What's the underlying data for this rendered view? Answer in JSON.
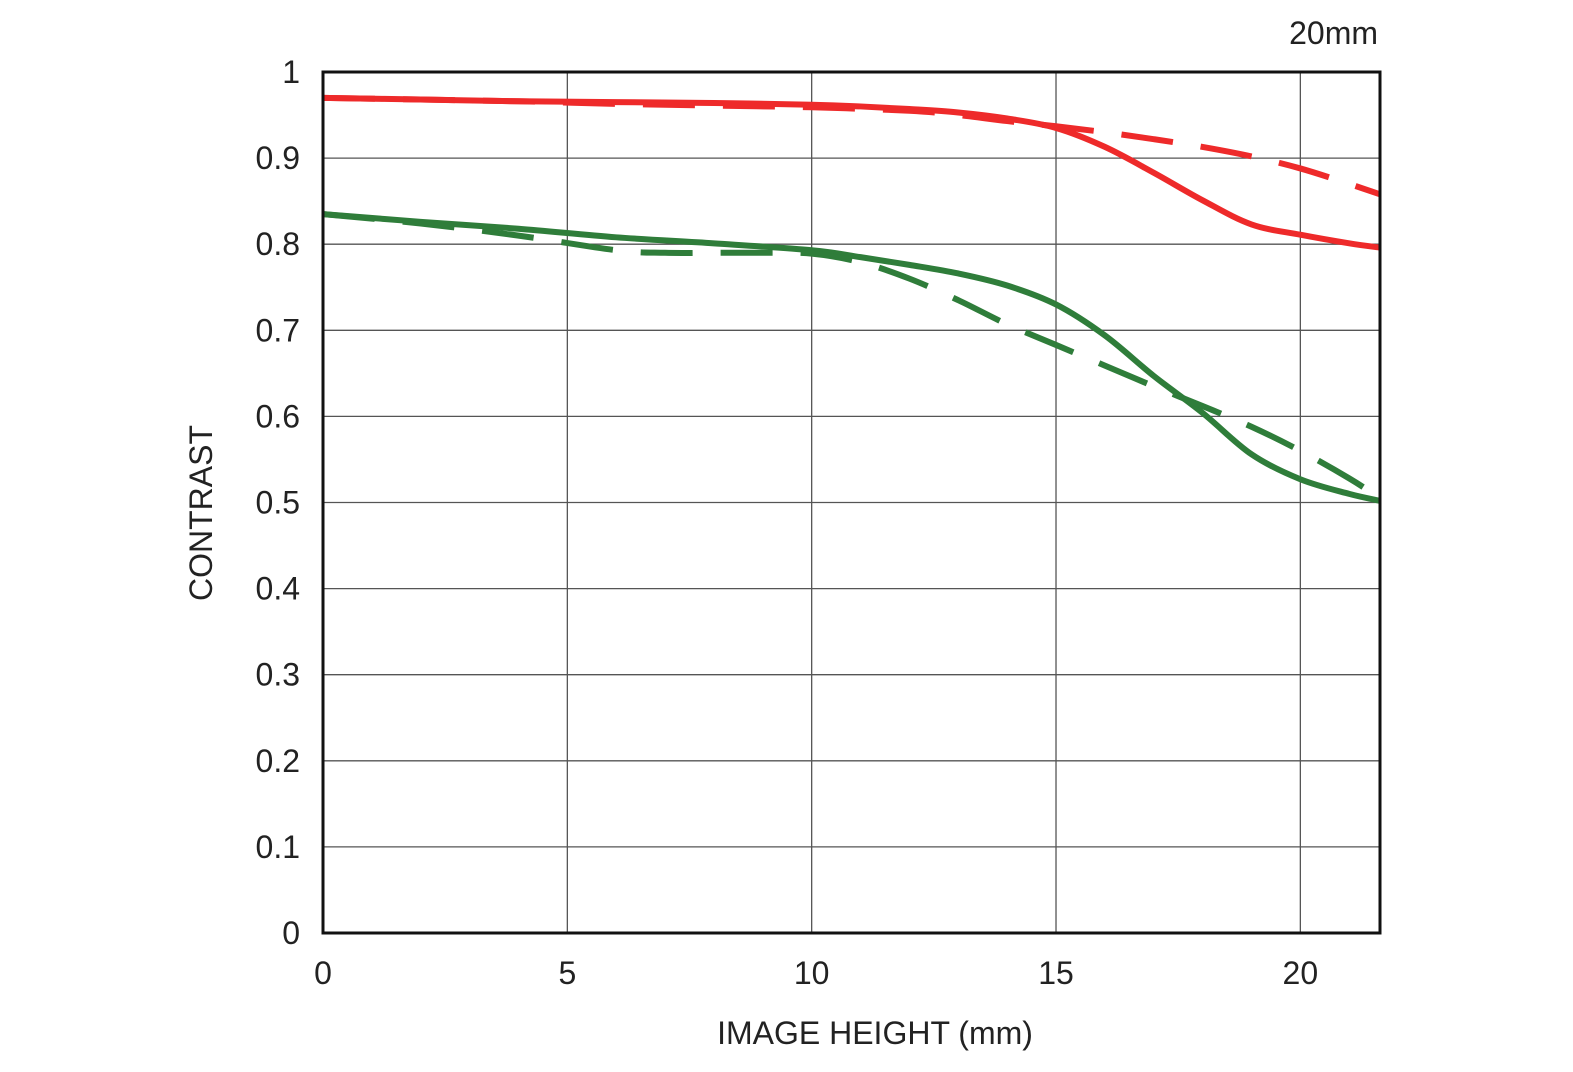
{
  "chart_data": {
    "type": "line",
    "title": "",
    "annotation": "20mm",
    "xlabel": "IMAGE HEIGHT (mm)",
    "ylabel": "CONTRAST",
    "xlim": [
      0,
      21.63
    ],
    "ylim": [
      0,
      1
    ],
    "xticks": [
      0,
      5,
      10,
      15,
      20
    ],
    "xtick_labels": [
      "0",
      "5",
      "10",
      "15",
      "20"
    ],
    "yticks": [
      0,
      0.1,
      0.2,
      0.3,
      0.4,
      0.5,
      0.6,
      0.7,
      0.8,
      0.9,
      1
    ],
    "ytick_labels": [
      "0",
      "0.1",
      "0.2",
      "0.3",
      "0.4",
      "0.5",
      "0.6",
      "0.7",
      "0.8",
      "0.9",
      "1"
    ],
    "grid": true,
    "colors": {
      "red": "#ee2a2a",
      "green": "#2f7d3a",
      "grid": "#555555",
      "frame": "#111111"
    },
    "series": [
      {
        "color": "#ee2a2a",
        "dash": "solid",
        "x": [
          0,
          2,
          4,
          6,
          8,
          10,
          11,
          12,
          13,
          14,
          15,
          16,
          17,
          18,
          19,
          20,
          21,
          21.63
        ],
        "y": [
          0.97,
          0.968,
          0.966,
          0.965,
          0.964,
          0.962,
          0.96,
          0.957,
          0.953,
          0.946,
          0.935,
          0.913,
          0.883,
          0.851,
          0.823,
          0.811,
          0.801,
          0.796
        ]
      },
      {
        "color": "#ee2a2a",
        "dash": "dashed",
        "x": [
          0,
          2,
          4,
          6,
          8,
          10,
          12,
          13,
          14,
          15,
          16,
          17,
          18,
          19,
          20,
          21,
          21.63
        ],
        "y": [
          0.97,
          0.968,
          0.966,
          0.963,
          0.961,
          0.959,
          0.955,
          0.95,
          0.943,
          0.937,
          0.93,
          0.922,
          0.913,
          0.902,
          0.888,
          0.87,
          0.858
        ]
      },
      {
        "color": "#2f7d3a",
        "dash": "solid",
        "x": [
          0,
          2,
          4,
          6,
          8,
          10,
          11,
          12,
          13,
          14,
          15,
          16,
          17,
          18,
          19,
          20,
          21,
          21.63
        ],
        "y": [
          0.835,
          0.826,
          0.818,
          0.808,
          0.801,
          0.793,
          0.785,
          0.776,
          0.766,
          0.752,
          0.73,
          0.694,
          0.647,
          0.604,
          0.556,
          0.527,
          0.51,
          0.502
        ]
      },
      {
        "color": "#2f7d3a",
        "dash": "dashed",
        "x": [
          0,
          2,
          4,
          6,
          7,
          8,
          9,
          10,
          11,
          12,
          13,
          14,
          15,
          16,
          17,
          18,
          19,
          20,
          21,
          21.63
        ],
        "y": [
          0.835,
          0.824,
          0.81,
          0.793,
          0.79,
          0.79,
          0.79,
          0.789,
          0.779,
          0.76,
          0.735,
          0.707,
          0.683,
          0.659,
          0.635,
          0.612,
          0.588,
          0.56,
          0.528,
          0.505
        ]
      }
    ]
  }
}
